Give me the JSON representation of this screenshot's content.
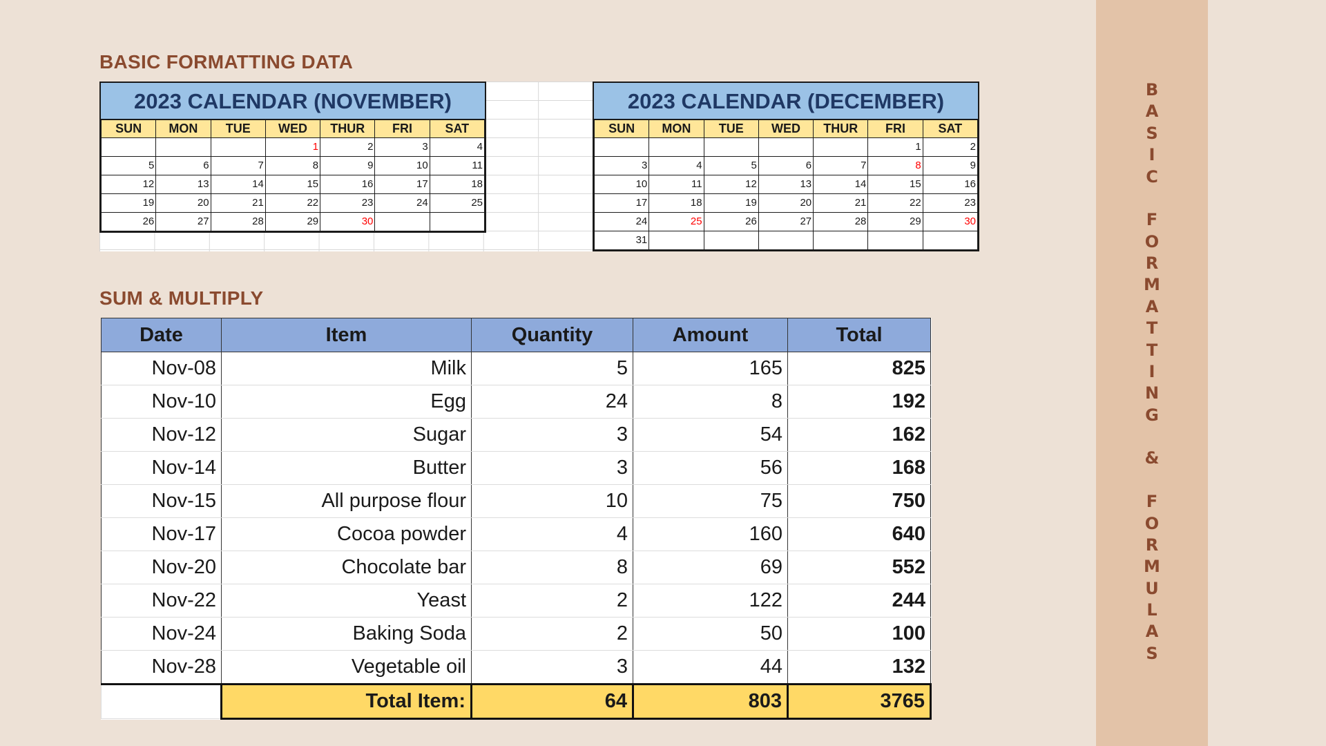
{
  "section1_title": "BASIC FORMATTING DATA",
  "section2_title": "SUM & MULTIPLY",
  "calendars": {
    "november": {
      "title": "2023 CALENDAR (NOVEMBER)",
      "days": [
        "SUN",
        "MON",
        "TUE",
        "WED",
        "THUR",
        "FRI",
        "SAT"
      ],
      "weeks": [
        [
          "",
          "",
          "",
          "1",
          "2",
          "3",
          "4"
        ],
        [
          "5",
          "6",
          "7",
          "8",
          "9",
          "10",
          "11"
        ],
        [
          "12",
          "13",
          "14",
          "15",
          "16",
          "17",
          "18"
        ],
        [
          "19",
          "20",
          "21",
          "22",
          "23",
          "24",
          "25"
        ],
        [
          "26",
          "27",
          "28",
          "29",
          "30",
          "",
          ""
        ]
      ],
      "highlighted_dates": [
        "1",
        "30"
      ]
    },
    "december": {
      "title": "2023 CALENDAR (DECEMBER)",
      "days": [
        "SUN",
        "MON",
        "TUE",
        "WED",
        "THUR",
        "FRI",
        "SAT"
      ],
      "weeks": [
        [
          "",
          "",
          "",
          "",
          "",
          "1",
          "2"
        ],
        [
          "3",
          "4",
          "5",
          "6",
          "7",
          "8",
          "9"
        ],
        [
          "10",
          "11",
          "12",
          "13",
          "14",
          "15",
          "16"
        ],
        [
          "17",
          "18",
          "19",
          "20",
          "21",
          "22",
          "23"
        ],
        [
          "24",
          "25",
          "26",
          "27",
          "28",
          "29",
          "30"
        ],
        [
          "31",
          "",
          "",
          "",
          "",
          "",
          ""
        ]
      ],
      "highlighted_dates": [
        "8",
        "25",
        "30"
      ]
    }
  },
  "sum_table": {
    "headers": [
      "Date",
      "Item",
      "Quantity",
      "Amount",
      "Total"
    ],
    "rows": [
      [
        "Nov-08",
        "Milk",
        "5",
        "165",
        "825"
      ],
      [
        "Nov-10",
        "Egg",
        "24",
        "8",
        "192"
      ],
      [
        "Nov-12",
        "Sugar",
        "3",
        "54",
        "162"
      ],
      [
        "Nov-14",
        "Butter",
        "3",
        "56",
        "168"
      ],
      [
        "Nov-15",
        "All purpose flour",
        "10",
        "75",
        "750"
      ],
      [
        "Nov-17",
        "Cocoa powder",
        "4",
        "160",
        "640"
      ],
      [
        "Nov-20",
        "Chocolate bar",
        "8",
        "69",
        "552"
      ],
      [
        "Nov-22",
        "Yeast",
        "2",
        "122",
        "244"
      ],
      [
        "Nov-24",
        "Baking Soda",
        "2",
        "50",
        "100"
      ],
      [
        "Nov-28",
        "Vegetable oil",
        "3",
        "44",
        "132"
      ]
    ],
    "total_row": {
      "label": "Total Item:",
      "quantity": "64",
      "amount": "803",
      "total": "3765"
    }
  },
  "side_label": "BASIC FORMATTING & FORMULAS",
  "colors": {
    "background": "#ede1d6",
    "title_brown": "#8a4a2f",
    "calendar_title_bg": "#9bc2e6",
    "calendar_title_text": "#1f3864",
    "day_header_bg": "#ffe699",
    "table_header_bg": "#8eaadb",
    "total_row_bg": "#ffd966",
    "side_band": "#e3c3a8",
    "highlight_red": "#ff0000"
  }
}
